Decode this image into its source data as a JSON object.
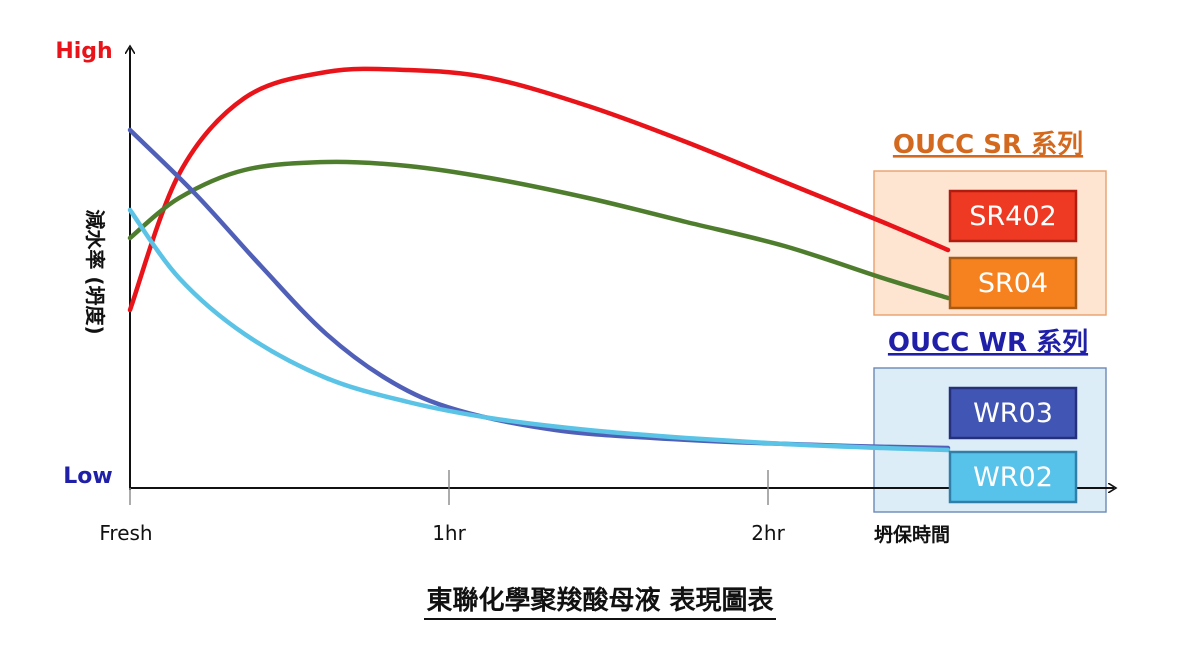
{
  "chart_data": {
    "type": "line",
    "title": "東聯化學聚羧酸母液 表現圖表",
    "xlabel": "坍保時間",
    "ylabel": "減水率 (坍度)",
    "y_high_label": "High",
    "y_low_label": "Low",
    "x_ticks": [
      "Fresh",
      "1hr",
      "2hr"
    ],
    "x_tick_values": [
      0,
      1,
      2
    ],
    "xlim": [
      0,
      2.5
    ],
    "ylim": [
      0,
      100
    ],
    "groups": [
      {
        "name": "OUCC SR 系列",
        "color": "#d2691e",
        "box_fill": "#fde5d2",
        "box_border": "#e9a06b"
      },
      {
        "name": "OUCC WR 系列",
        "color": "#1f1fa8",
        "box_fill": "#dcedf7",
        "box_border": "#6b89b8"
      }
    ],
    "series": [
      {
        "name": "SR402",
        "group": 0,
        "color": "#e8141a",
        "legend_fill": "#ee3a22",
        "legend_border": "#b01c10",
        "x": [
          0,
          0.15,
          0.35,
          0.6,
          0.85,
          1.1,
          1.4,
          1.7,
          2.0,
          2.3,
          2.5
        ],
        "y": [
          40,
          74,
          93,
          99.5,
          100,
          98,
          91,
          82,
          72,
          62,
          55
        ]
      },
      {
        "name": "SR04",
        "group": 0,
        "color": "#4f7d2e",
        "legend_fill": "#f5821f",
        "legend_border": "#a65a14",
        "x": [
          0,
          0.15,
          0.35,
          0.6,
          0.85,
          1.1,
          1.4,
          1.7,
          2.0,
          2.3,
          2.5
        ],
        "y": [
          58,
          68,
          75,
          77,
          76,
          73,
          68,
          62,
          56,
          48,
          43
        ]
      },
      {
        "name": "WR03",
        "group": 1,
        "color": "#5060b8",
        "legend_fill": "#4155b5",
        "legend_border": "#25307a",
        "x": [
          0,
          0.2,
          0.4,
          0.6,
          0.8,
          1.0,
          1.3,
          1.6,
          1.9,
          2.2,
          2.5
        ],
        "y": [
          85,
          69,
          51,
          34,
          22,
          15,
          10,
          8,
          6.8,
          6,
          5.5
        ]
      },
      {
        "name": "WR02",
        "group": 1,
        "color": "#5bc3e6",
        "legend_fill": "#58c3ea",
        "legend_border": "#2f7fa8",
        "x": [
          0,
          0.15,
          0.35,
          0.6,
          0.85,
          1.1,
          1.4,
          1.7,
          2.0,
          2.3,
          2.5
        ],
        "y": [
          65,
          48,
          34,
          23,
          17,
          13,
          10,
          8,
          6.5,
          5.5,
          5
        ]
      }
    ]
  }
}
